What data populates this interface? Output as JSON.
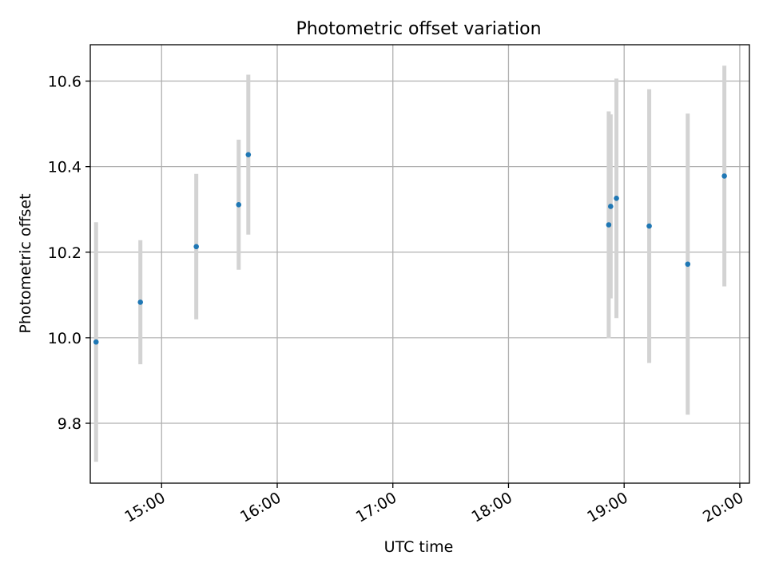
{
  "chart_data": {
    "type": "scatter",
    "title": "Photometric offset variation",
    "xlabel": "UTC time",
    "ylabel": "Photometric offset",
    "x_ticks": [
      "15:00",
      "16:00",
      "17:00",
      "18:00",
      "19:00",
      "20:00"
    ],
    "y_ticks": [
      "9.8",
      "10.0",
      "10.2",
      "10.4",
      "10.6"
    ],
    "xlim": [
      "14:23",
      "20:05"
    ],
    "ylim": [
      9.66,
      10.685
    ],
    "grid": true,
    "series": [
      {
        "points": [
          {
            "time": "14:26",
            "value": 9.99,
            "error": 0.28
          },
          {
            "time": "14:49",
            "value": 10.083,
            "error": 0.145
          },
          {
            "time": "15:18",
            "value": 10.213,
            "error": 0.17
          },
          {
            "time": "15:40",
            "value": 10.311,
            "error": 0.152
          },
          {
            "time": "15:45",
            "value": 10.428,
            "error": 0.187
          },
          {
            "time": "18:52",
            "value": 10.264,
            "error": 0.265
          },
          {
            "time": "18:53",
            "value": 10.307,
            "error": 0.215
          },
          {
            "time": "18:56",
            "value": 10.326,
            "error": 0.28
          },
          {
            "time": "19:13",
            "value": 10.261,
            "error": 0.32
          },
          {
            "time": "19:33",
            "value": 10.172,
            "error": 0.352
          },
          {
            "time": "19:52",
            "value": 10.378,
            "error": 0.258
          }
        ]
      }
    ],
    "colors": {
      "point": "#1f77b4",
      "errorbar": "#d3d3d3",
      "grid": "#b0b0b0",
      "axes": "#000000"
    }
  }
}
